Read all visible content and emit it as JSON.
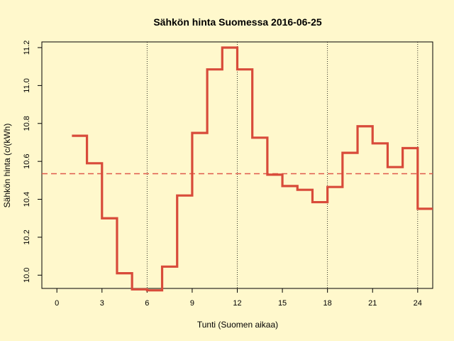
{
  "chart_data": {
    "type": "line",
    "step": true,
    "title": "Sähkön hinta Suomessa 2016-06-25",
    "xlabel": "Tunti (Suomen aikaa)",
    "ylabel": "Sähkön hinta (c/(kWh)",
    "xlim": [
      -1,
      25
    ],
    "ylim": [
      9.93,
      11.23
    ],
    "xticks": [
      0,
      3,
      6,
      9,
      12,
      15,
      18,
      21,
      24
    ],
    "yticks": [
      10.0,
      10.2,
      10.4,
      10.6,
      10.8,
      11.0,
      11.2
    ],
    "ytick_labels": [
      "10.0",
      "10.2",
      "10.4",
      "10.6",
      "10.8",
      "11.0",
      "11.2"
    ],
    "vertical_reference_lines": [
      6,
      12,
      18,
      24
    ],
    "mean_line": 10.535,
    "grid": false,
    "series": [
      {
        "x": [
          1,
          2,
          3,
          4,
          5,
          6,
          7,
          8,
          9,
          10,
          11,
          12,
          13,
          14,
          15,
          16,
          17,
          18,
          19,
          20,
          21,
          22,
          23,
          24
        ],
        "values": [
          10.735,
          10.59,
          10.3,
          10.01,
          9.925,
          9.92,
          10.045,
          10.42,
          10.75,
          11.085,
          11.2,
          11.085,
          10.725,
          10.53,
          10.47,
          10.45,
          10.385,
          10.465,
          10.645,
          10.785,
          10.695,
          10.57,
          10.67,
          10.35
        ],
        "color": "#d84b3a"
      }
    ],
    "colors": {
      "series": "#d84b3a",
      "mean_line": "#e05a4a",
      "background": "#fff8cc",
      "axis": "#000000"
    }
  }
}
